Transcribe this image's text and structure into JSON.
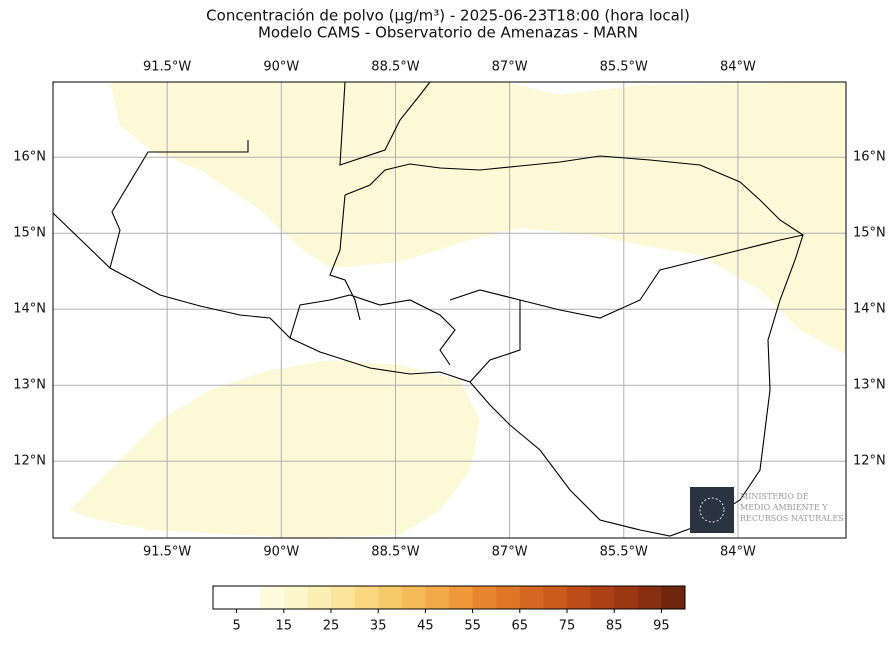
{
  "title": "Concentración de polvo (µg/m³) - 2025-06-23T18:00 (hora local)",
  "subtitle": "Modelo CAMS - Observatorio de Amenazas - MARN",
  "map": {
    "type": "map",
    "lonlim": [
      -93.0,
      -82.58
    ],
    "latlim": [
      10.99,
      16.99
    ],
    "lon_ticks": [
      {
        "value": -91.5,
        "label": "91.5°W"
      },
      {
        "value": -90,
        "label": "90°W"
      },
      {
        "value": -88.5,
        "label": "88.5°W"
      },
      {
        "value": -87,
        "label": "87°W"
      },
      {
        "value": -85.5,
        "label": "85.5°W"
      },
      {
        "value": -84,
        "label": "84°W"
      }
    ],
    "lat_ticks": [
      {
        "value": 16,
        "label": "16°N"
      },
      {
        "value": 15,
        "label": "15°N"
      },
      {
        "value": 14,
        "label": "14°N"
      },
      {
        "value": 13,
        "label": "13°N"
      },
      {
        "value": 12,
        "label": "12°N"
      }
    ],
    "grid": true
  },
  "colorbar": {
    "lim": [
      0,
      100
    ],
    "ticks": [
      5,
      15,
      25,
      35,
      45,
      55,
      65,
      75,
      85,
      95
    ],
    "colors": [
      "#ffffff",
      "#ffffff",
      "#fffbde",
      "#fef7cc",
      "#fdefb3",
      "#fbe59a",
      "#f9d880",
      "#f7ca69",
      "#f5bb56",
      "#f2aa46",
      "#ee983a",
      "#e8862f",
      "#e07627",
      "#d66722",
      "#cb5a1d",
      "#bd4c19",
      "#ad4116",
      "#9b3713",
      "#872f10",
      "#6e260d"
    ]
  },
  "logo": {
    "lines": [
      "MINISTERIO DE",
      "MEDIO AMBIENTE Y",
      "RECURSOS NATURALES"
    ]
  }
}
